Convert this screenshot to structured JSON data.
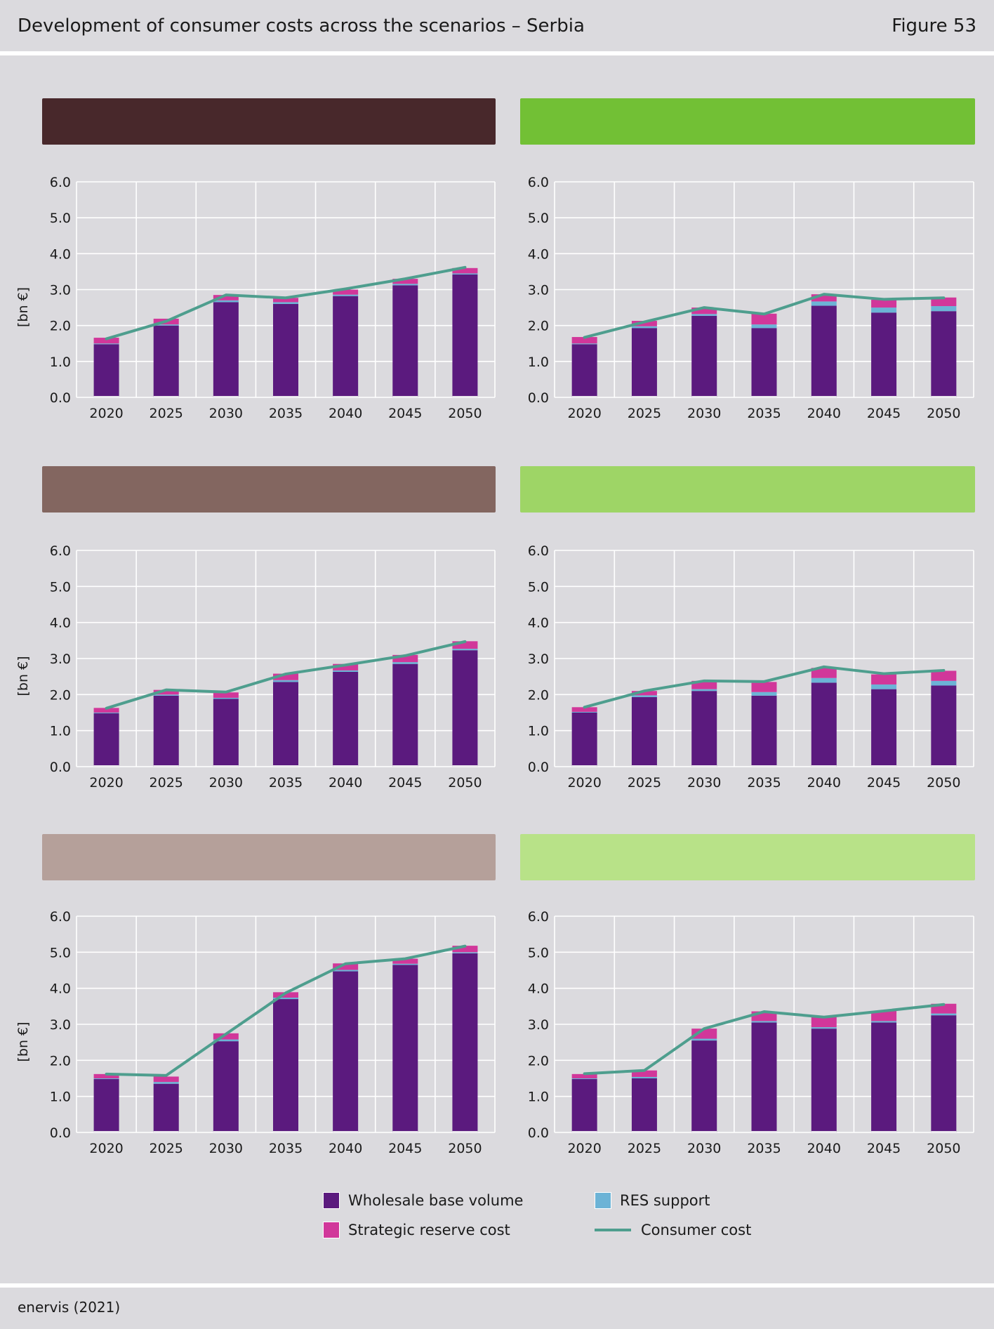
{
  "header": {
    "title": "Development of consumer costs across the scenarios – Serbia",
    "figure": "Figure 53"
  },
  "footer": {
    "source": "enervis (2021)"
  },
  "colors": {
    "wholesale": "#5b1a7e",
    "res": "#6cb3d6",
    "reserve": "#d1379a",
    "consumer": "#4e9e8e",
    "bands": [
      "#48282b",
      "#72c035",
      "#836660",
      "#9ed566",
      "#b5a09a",
      "#b8e288"
    ]
  },
  "legend": {
    "wholesale": "Wholesale base volume",
    "res": "RES support",
    "reserve": "Strategic reserve cost",
    "consumer": "Consumer cost"
  },
  "chart_data": [
    {
      "type": "bar",
      "ylabel": "[bn €]",
      "ylim": [
        0,
        6
      ],
      "yticks": [
        "0.0",
        "1.0",
        "2.0",
        "3.0",
        "4.0",
        "5.0",
        "6.0"
      ],
      "categories": [
        "2020",
        "2025",
        "2030",
        "2035",
        "2040",
        "2045",
        "2050"
      ],
      "series": [
        {
          "name": "Wholesale base volume",
          "values": [
            1.48,
            2.0,
            2.65,
            2.6,
            2.82,
            3.12,
            3.42
          ]
        },
        {
          "name": "RES support",
          "values": [
            0.02,
            0.03,
            0.05,
            0.05,
            0.04,
            0.04,
            0.03
          ]
        },
        {
          "name": "Strategic reserve cost",
          "values": [
            0.16,
            0.16,
            0.15,
            0.12,
            0.14,
            0.14,
            0.15
          ]
        },
        {
          "name": "Consumer cost",
          "values": [
            1.63,
            2.12,
            2.85,
            2.77,
            3.02,
            3.3,
            3.62
          ]
        }
      ]
    },
    {
      "type": "bar",
      "ylabel": "",
      "ylim": [
        0,
        6
      ],
      "yticks": [
        "0.0",
        "1.0",
        "2.0",
        "3.0",
        "4.0",
        "5.0",
        "6.0"
      ],
      "categories": [
        "2020",
        "2025",
        "2030",
        "2035",
        "2040",
        "2045",
        "2050"
      ],
      "series": [
        {
          "name": "Wholesale base volume",
          "values": [
            1.48,
            1.93,
            2.27,
            1.93,
            2.55,
            2.36,
            2.4
          ]
        },
        {
          "name": "RES support",
          "values": [
            0.02,
            0.05,
            0.05,
            0.1,
            0.12,
            0.14,
            0.14
          ]
        },
        {
          "name": "Strategic reserve cost",
          "values": [
            0.18,
            0.15,
            0.18,
            0.3,
            0.2,
            0.22,
            0.24
          ]
        },
        {
          "name": "Consumer cost",
          "values": [
            1.67,
            2.1,
            2.5,
            2.32,
            2.87,
            2.73,
            2.77
          ]
        }
      ]
    },
    {
      "type": "bar",
      "ylabel": "[bn €]",
      "ylim": [
        0,
        6
      ],
      "yticks": [
        "0.0",
        "1.0",
        "2.0",
        "3.0",
        "4.0",
        "5.0",
        "6.0"
      ],
      "categories": [
        "2020",
        "2025",
        "2030",
        "2035",
        "2040",
        "2045",
        "2050"
      ],
      "series": [
        {
          "name": "Wholesale base volume",
          "values": [
            1.48,
            1.97,
            1.88,
            2.35,
            2.63,
            2.85,
            3.23
          ]
        },
        {
          "name": "RES support",
          "values": [
            0.02,
            0.03,
            0.03,
            0.05,
            0.04,
            0.05,
            0.04
          ]
        },
        {
          "name": "Strategic reserve cost",
          "values": [
            0.13,
            0.13,
            0.15,
            0.18,
            0.18,
            0.2,
            0.21
          ]
        },
        {
          "name": "Consumer cost",
          "values": [
            1.62,
            2.13,
            2.07,
            2.57,
            2.82,
            3.08,
            3.47
          ]
        }
      ]
    },
    {
      "type": "bar",
      "ylabel": "",
      "ylim": [
        0,
        6
      ],
      "yticks": [
        "0.0",
        "1.0",
        "2.0",
        "3.0",
        "4.0",
        "5.0",
        "6.0"
      ],
      "categories": [
        "2020",
        "2025",
        "2030",
        "2035",
        "2040",
        "2045",
        "2050"
      ],
      "series": [
        {
          "name": "Wholesale base volume",
          "values": [
            1.5,
            1.93,
            2.1,
            1.97,
            2.33,
            2.15,
            2.25
          ]
        },
        {
          "name": "RES support",
          "values": [
            0.02,
            0.05,
            0.05,
            0.1,
            0.13,
            0.13,
            0.13
          ]
        },
        {
          "name": "Strategic reserve cost",
          "values": [
            0.13,
            0.12,
            0.23,
            0.28,
            0.28,
            0.28,
            0.28
          ]
        },
        {
          "name": "Consumer cost",
          "values": [
            1.65,
            2.1,
            2.38,
            2.36,
            2.77,
            2.58,
            2.67
          ]
        }
      ]
    },
    {
      "type": "bar",
      "ylabel": "[bn €]",
      "ylim": [
        0,
        6
      ],
      "yticks": [
        "0.0",
        "1.0",
        "2.0",
        "3.0",
        "4.0",
        "5.0",
        "6.0"
      ],
      "categories": [
        "2020",
        "2025",
        "2030",
        "2035",
        "2040",
        "2045",
        "2050"
      ],
      "series": [
        {
          "name": "Wholesale base volume",
          "values": [
            1.48,
            1.35,
            2.53,
            3.7,
            4.47,
            4.65,
            4.97
          ]
        },
        {
          "name": "RES support",
          "values": [
            0.02,
            0.05,
            0.05,
            0.04,
            0.04,
            0.03,
            0.03
          ]
        },
        {
          "name": "Strategic reserve cost",
          "values": [
            0.12,
            0.15,
            0.17,
            0.15,
            0.18,
            0.14,
            0.18
          ]
        },
        {
          "name": "Consumer cost",
          "values": [
            1.62,
            1.58,
            2.73,
            3.87,
            4.68,
            4.82,
            5.17
          ]
        }
      ]
    },
    {
      "type": "bar",
      "ylabel": "",
      "ylim": [
        0,
        6
      ],
      "yticks": [
        "0.0",
        "1.0",
        "2.0",
        "3.0",
        "4.0",
        "5.0",
        "6.0"
      ],
      "categories": [
        "2020",
        "2025",
        "2030",
        "2035",
        "2040",
        "2045",
        "2050"
      ],
      "series": [
        {
          "name": "Wholesale base volume",
          "values": [
            1.48,
            1.5,
            2.55,
            3.05,
            2.88,
            3.05,
            3.25
          ]
        },
        {
          "name": "RES support",
          "values": [
            0.02,
            0.04,
            0.05,
            0.04,
            0.04,
            0.04,
            0.05
          ]
        },
        {
          "name": "Strategic reserve cost",
          "values": [
            0.12,
            0.18,
            0.28,
            0.27,
            0.28,
            0.28,
            0.27
          ]
        },
        {
          "name": "Consumer cost",
          "values": [
            1.63,
            1.72,
            2.88,
            3.35,
            3.2,
            3.37,
            3.55
          ]
        }
      ]
    }
  ]
}
